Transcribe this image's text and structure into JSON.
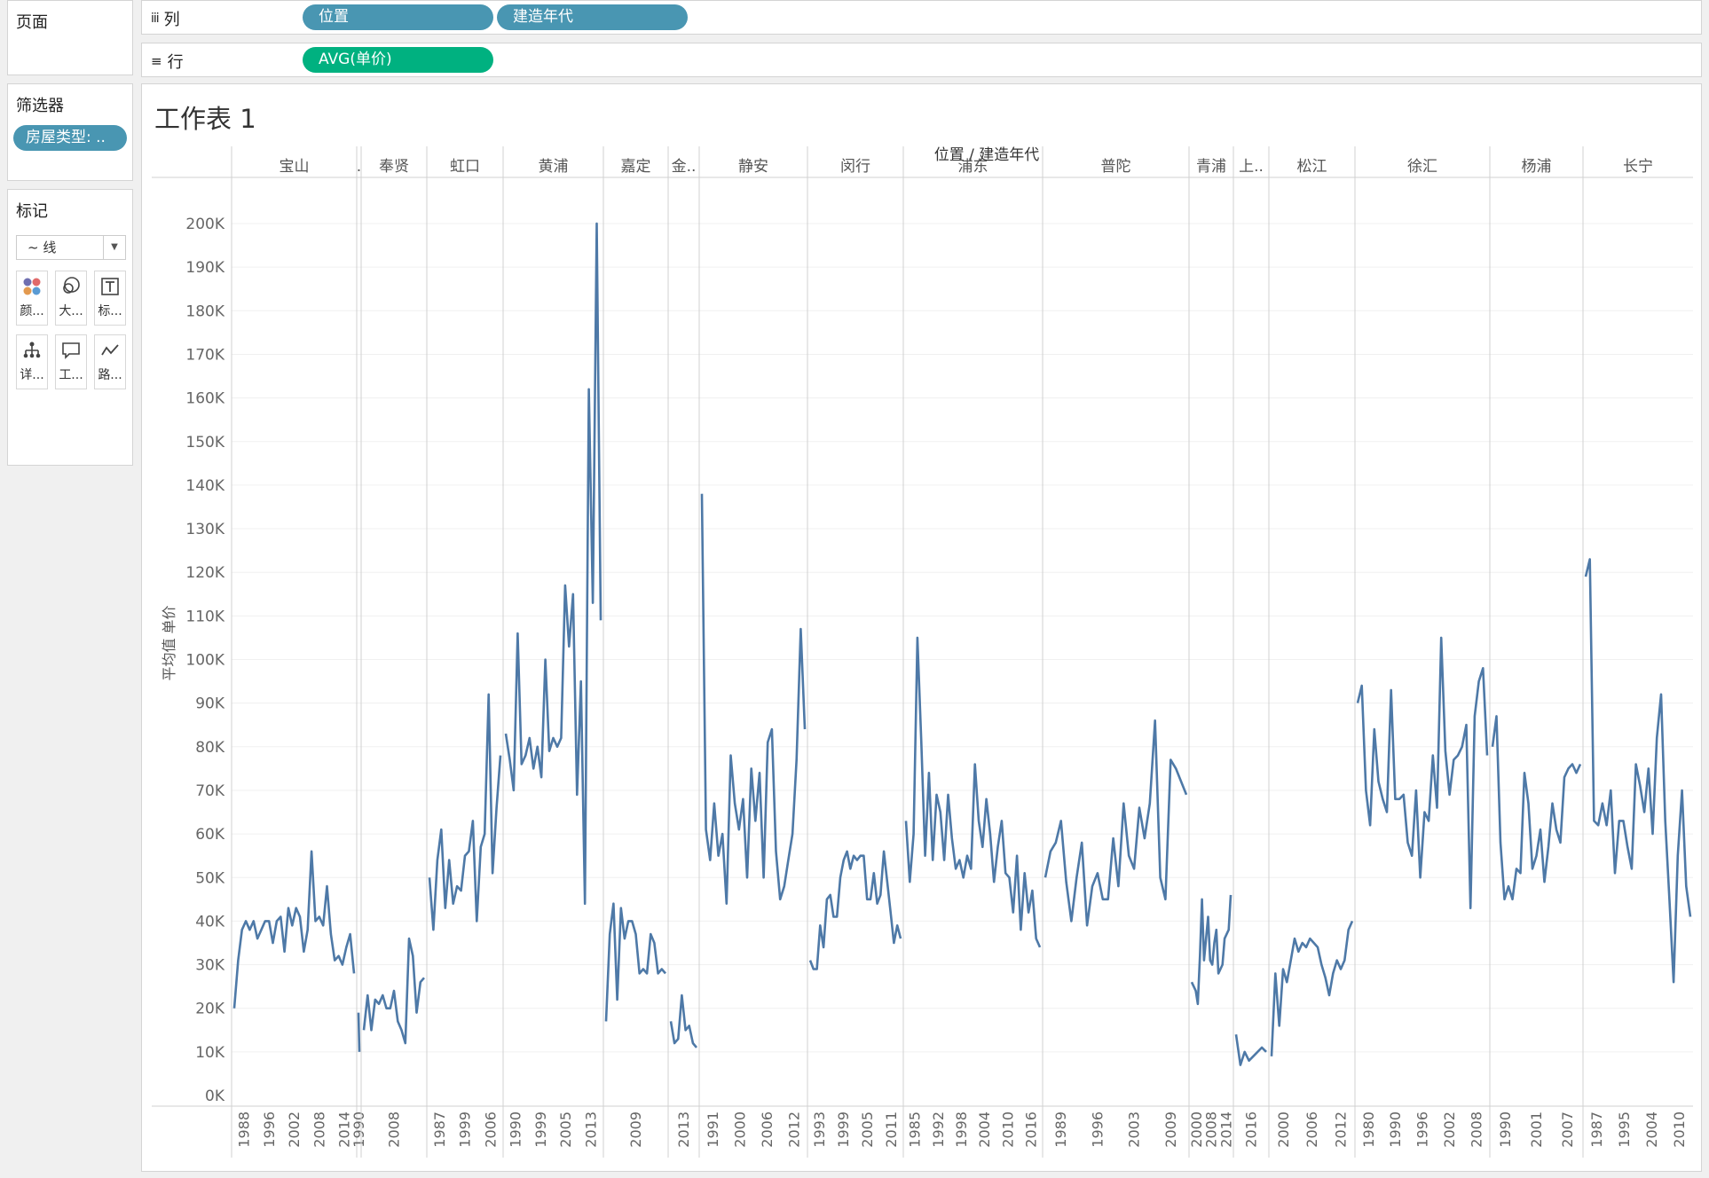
{
  "pages": {
    "title": "页面"
  },
  "columns_shelf": {
    "label": "列",
    "pills": [
      "位置",
      "建造年代"
    ]
  },
  "rows_shelf": {
    "label": "行",
    "pills": [
      "AVG(单价)"
    ]
  },
  "filters": {
    "title": "筛选器",
    "pill": "房屋类型: .."
  },
  "marks": {
    "title": "标记",
    "type": "线",
    "buttons": [
      "颜...",
      "大...",
      "标...",
      "详...",
      "工...",
      "路..."
    ]
  },
  "colors": {
    "line": "#4e79a7",
    "pill_blue": "#4996b2",
    "pill_green": "#00b180"
  },
  "chart_data": {
    "type": "line",
    "title": "工作表 1",
    "header": "位置 / 建造年代",
    "ylabel": "平均值 单价",
    "ylim": [
      0,
      200000
    ],
    "y_ticks": [
      "0K",
      "10K",
      "20K",
      "30K",
      "40K",
      "50K",
      "60K",
      "70K",
      "80K",
      "90K",
      "100K",
      "110K",
      "120K",
      "130K",
      "140K",
      "150K",
      "160K",
      "170K",
      "180K",
      "190K",
      "200K"
    ],
    "panes": [
      {
        "name": "宝山",
        "x_ticks": [
          "1988",
          "1996",
          "2002",
          "2008",
          "2014"
        ],
        "values": [
          20000,
          31000,
          38000,
          40000,
          38000,
          40000,
          36000,
          38000,
          40000,
          40000,
          35000,
          40000,
          41000,
          33000,
          43000,
          39000,
          43000,
          41000,
          33000,
          38000,
          56000,
          40000,
          41000,
          39000,
          48000,
          37000,
          31000,
          32000,
          30000,
          34000,
          37000,
          28000
        ]
      },
      {
        "name": ".",
        "x_ticks": [
          "1990"
        ],
        "values": [
          10000,
          19000
        ]
      },
      {
        "name": "奉贤",
        "x_ticks": [
          "2008"
        ],
        "values": [
          15000,
          23000,
          15000,
          22000,
          21000,
          23000,
          20000,
          20000,
          24000,
          17000,
          15000,
          12000,
          36000,
          32000,
          19000,
          26000,
          27000
        ]
      },
      {
        "name": "虹口",
        "x_ticks": [
          "1987",
          "1999",
          "2006"
        ],
        "values": [
          50000,
          38000,
          54000,
          61000,
          43000,
          54000,
          44000,
          48000,
          47000,
          55000,
          56000,
          63000,
          40000,
          57000,
          60000,
          92000,
          51000,
          66000,
          78000
        ]
      },
      {
        "name": "黄浦",
        "x_ticks": [
          "1990",
          "1999",
          "2005",
          "2013"
        ],
        "values": [
          83000,
          77000,
          70000,
          106000,
          76000,
          78000,
          82000,
          75000,
          80000,
          73000,
          100000,
          79000,
          82000,
          80000,
          82000,
          117000,
          103000,
          115000,
          69000,
          95000,
          44000,
          162000,
          113000,
          200000,
          109000
        ]
      },
      {
        "name": "嘉定",
        "x_ticks": [
          "2009"
        ],
        "values": [
          17000,
          37000,
          44000,
          22000,
          43000,
          36000,
          40000,
          40000,
          37000,
          28000,
          29000,
          28000,
          37000,
          35000,
          28000,
          29000,
          28000
        ]
      },
      {
        "name": "金..",
        "x_ticks": [
          "2013"
        ],
        "values": [
          17000,
          12000,
          13000,
          23000,
          15000,
          16000,
          12000,
          11000
        ]
      },
      {
        "name": "静安",
        "x_ticks": [
          "1991",
          "2000",
          "2006",
          "2012"
        ],
        "values": [
          138000,
          61000,
          54000,
          67000,
          55000,
          60000,
          44000,
          78000,
          67000,
          61000,
          68000,
          50000,
          75000,
          63000,
          74000,
          50000,
          81000,
          84000,
          56000,
          45000,
          48000,
          54000,
          60000,
          77000,
          107000,
          84000
        ]
      },
      {
        "name": "闵行",
        "x_ticks": [
          "1993",
          "1999",
          "2005",
          "2011"
        ],
        "values": [
          31000,
          29000,
          29000,
          39000,
          34000,
          45000,
          46000,
          41000,
          41000,
          50000,
          54000,
          56000,
          52000,
          55000,
          54000,
          55000,
          55000,
          45000,
          45000,
          51000,
          44000,
          46000,
          56000,
          49000,
          42000,
          35000,
          39000,
          36000
        ]
      },
      {
        "name": "浦东",
        "x_ticks": [
          "1985",
          "1992",
          "1998",
          "2004",
          "2010",
          "2016"
        ],
        "values": [
          63000,
          49000,
          60000,
          105000,
          81000,
          55000,
          74000,
          54000,
          69000,
          65000,
          54000,
          69000,
          59000,
          52000,
          54000,
          50000,
          55000,
          52000,
          76000,
          63000,
          57000,
          68000,
          60000,
          49000,
          57000,
          63000,
          51000,
          50000,
          42000,
          55000,
          38000,
          51000,
          42000,
          47000,
          36000,
          34000
        ]
      },
      {
        "name": "普陀",
        "x_ticks": [
          "1989",
          "1996",
          "2003",
          "2009"
        ],
        "values": [
          50000,
          56000,
          58000,
          63000,
          49000,
          40000,
          50000,
          58000,
          39000,
          48000,
          51000,
          45000,
          45000,
          59000,
          48000,
          67000,
          55000,
          52000,
          66000,
          59000,
          67000,
          86000,
          50000,
          45000,
          77000,
          75000,
          72000,
          69000
        ]
      },
      {
        "name": "青浦",
        "x_ticks": [
          "2000",
          "2008",
          "2014"
        ],
        "values": [
          26000,
          25000,
          24000,
          21000,
          32000,
          45000,
          31000,
          36000,
          41000,
          31000,
          30000,
          35000,
          38000,
          28000,
          29000,
          30000,
          36000,
          37000,
          38000,
          46000
        ]
      },
      {
        "name": "上..",
        "x_ticks": [
          "2016"
        ],
        "values": [
          14000,
          7000,
          10000,
          8000,
          9000,
          10000,
          11000,
          10000
        ]
      },
      {
        "name": "松江",
        "x_ticks": [
          "2000",
          "2006",
          "2012"
        ],
        "values": [
          9000,
          28000,
          16000,
          29000,
          26000,
          31000,
          36000,
          33000,
          35000,
          34000,
          36000,
          35000,
          34000,
          30000,
          27000,
          23000,
          28000,
          31000,
          29000,
          31000,
          38000,
          40000
        ]
      },
      {
        "name": "徐汇",
        "x_ticks": [
          "1980",
          "1990",
          "1996",
          "2002",
          "2008"
        ],
        "values": [
          90000,
          94000,
          70000,
          62000,
          84000,
          72000,
          68000,
          65000,
          93000,
          68000,
          68000,
          69000,
          58000,
          55000,
          70000,
          50000,
          65000,
          63000,
          78000,
          66000,
          105000,
          79000,
          69000,
          77000,
          78000,
          80000,
          85000,
          43000,
          87000,
          95000,
          98000,
          78000
        ]
      },
      {
        "name": "杨浦",
        "x_ticks": [
          "1990",
          "2001",
          "2007"
        ],
        "values": [
          80000,
          87000,
          58000,
          45000,
          48000,
          45000,
          52000,
          51000,
          74000,
          67000,
          52000,
          55000,
          61000,
          49000,
          57000,
          67000,
          61000,
          58000,
          73000,
          75000,
          76000,
          74000,
          76000
        ]
      },
      {
        "name": "长宁",
        "x_ticks": [
          "1987",
          "1995",
          "2004",
          "2010"
        ],
        "values": [
          119000,
          123000,
          63000,
          62000,
          67000,
          62000,
          70000,
          51000,
          63000,
          63000,
          57000,
          52000,
          76000,
          71000,
          65000,
          75000,
          60000,
          82000,
          92000,
          63000,
          45000,
          26000,
          55000,
          70000,
          48000,
          41000
        ]
      }
    ]
  }
}
